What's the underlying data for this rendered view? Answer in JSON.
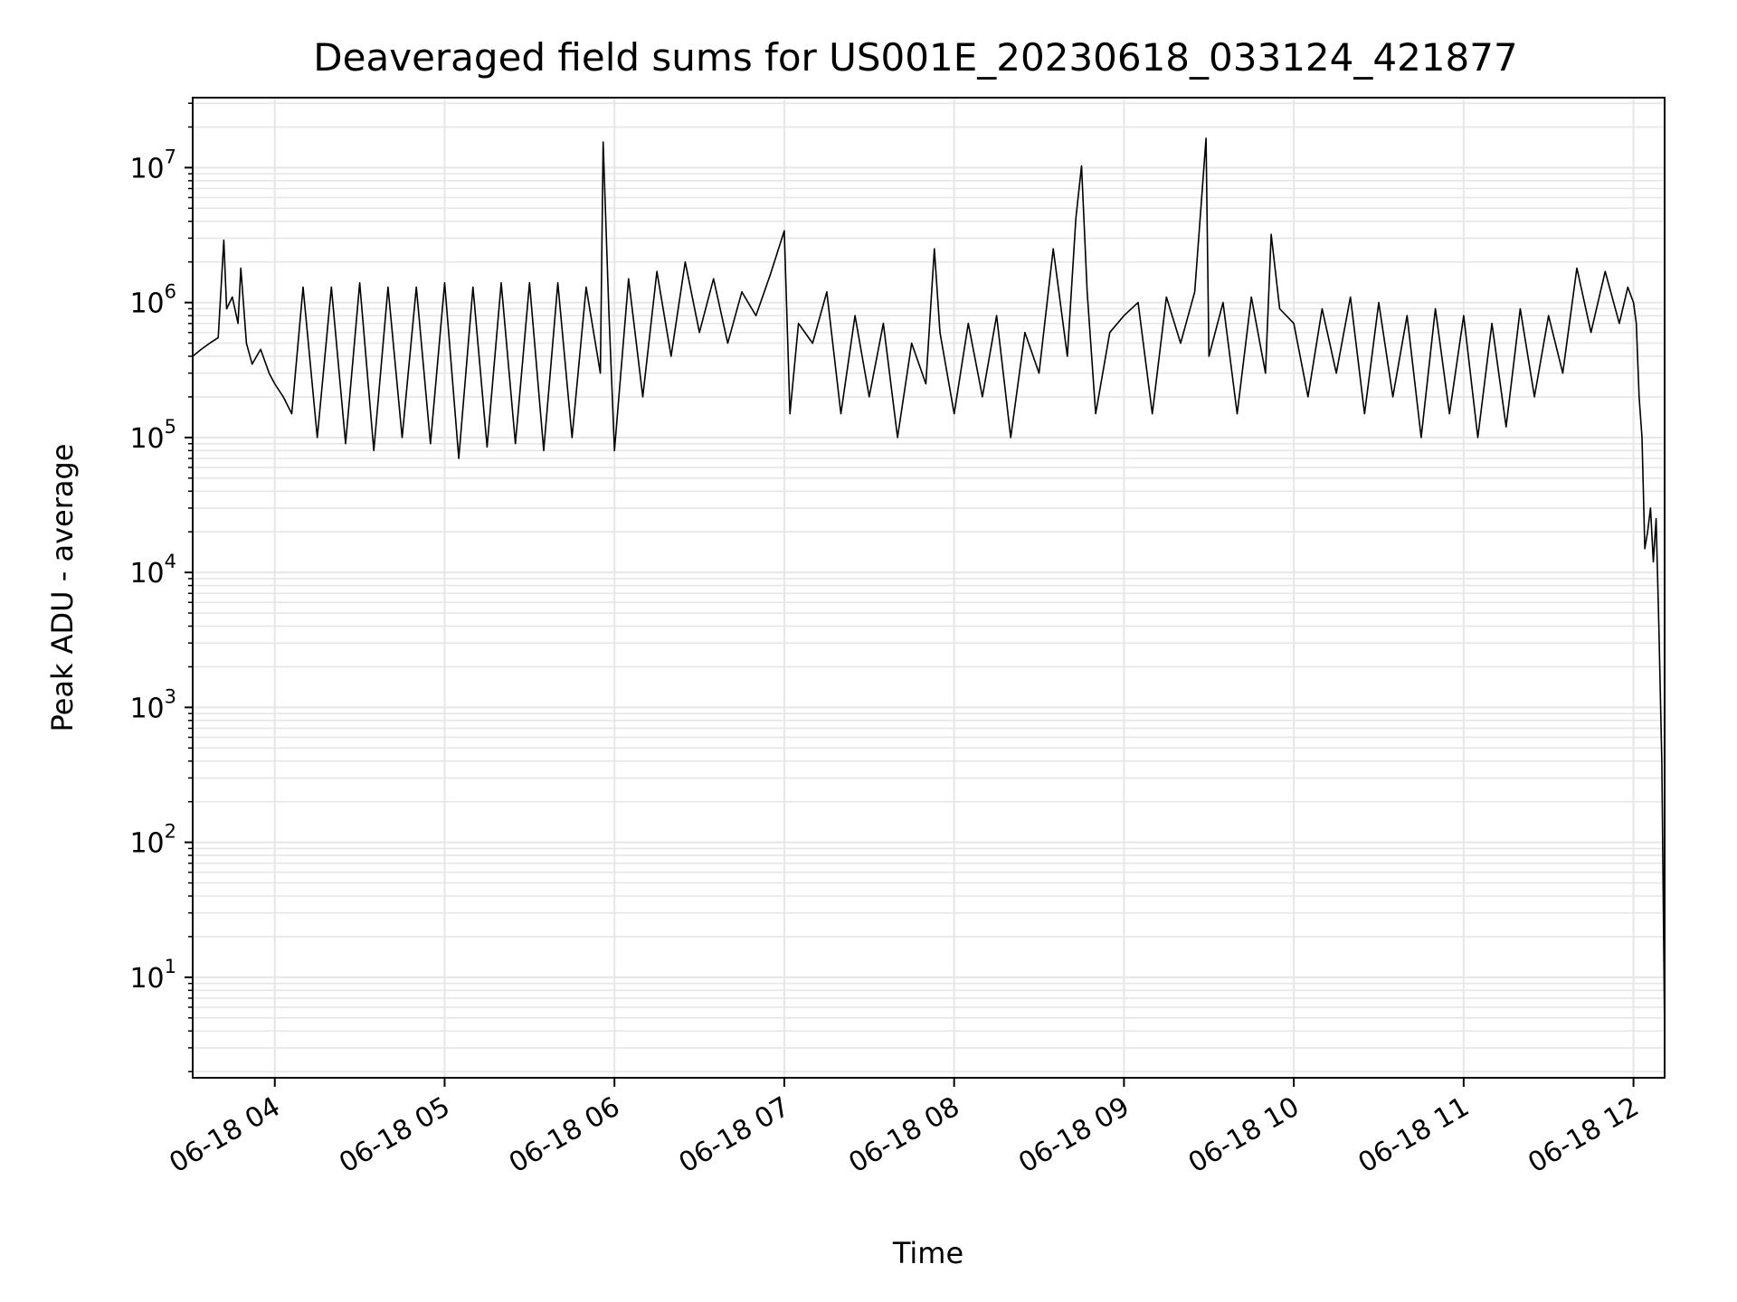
{
  "chart_data": {
    "type": "line",
    "title": "Deaveraged field sums for US001E_20230618_033124_421877",
    "xlabel": "Time",
    "ylabel": "Peak ADU - average",
    "yscale": "log",
    "x_range": [
      "06-18 03:31",
      "06-18 12:11"
    ],
    "y_range": [
      1.8,
      33000000.0
    ],
    "x_ticks": [
      {
        "label": "06-18 04",
        "hour": 4
      },
      {
        "label": "06-18 05",
        "hour": 5
      },
      {
        "label": "06-18 06",
        "hour": 6
      },
      {
        "label": "06-18 07",
        "hour": 7
      },
      {
        "label": "06-18 08",
        "hour": 8
      },
      {
        "label": "06-18 09",
        "hour": 9
      },
      {
        "label": "06-18 10",
        "hour": 10
      },
      {
        "label": "06-18 11",
        "hour": 11
      },
      {
        "label": "06-18 12",
        "hour": 12
      }
    ],
    "y_ticks": [
      {
        "base": "10",
        "exp": "1",
        "value": 10
      },
      {
        "base": "10",
        "exp": "2",
        "value": 100
      },
      {
        "base": "10",
        "exp": "3",
        "value": 1000
      },
      {
        "base": "10",
        "exp": "4",
        "value": 10000
      },
      {
        "base": "10",
        "exp": "5",
        "value": 100000
      },
      {
        "base": "10",
        "exp": "6",
        "value": 1000000
      },
      {
        "base": "10",
        "exp": "7",
        "value": 10000000
      }
    ],
    "grid": true,
    "line_color": "#000000",
    "grid_color": "#e6e6e6",
    "series": [
      {
        "x": [
          "03:31",
          "03:34",
          "03:37",
          "03:40",
          "03:42",
          "03:43",
          "03:45",
          "03:47",
          "03:48",
          "03:50",
          "03:52",
          "03:55",
          "03:58",
          "04:00",
          "04:03",
          "04:06",
          "04:10",
          "04:15",
          "04:20",
          "04:25",
          "04:30",
          "04:35",
          "04:40",
          "04:45",
          "04:50",
          "04:55",
          "05:00",
          "05:05",
          "05:10",
          "05:15",
          "05:20",
          "05:25",
          "05:30",
          "05:35",
          "05:40",
          "05:45",
          "05:50",
          "05:55",
          "05:56",
          "05:58",
          "06:00",
          "06:05",
          "06:10",
          "06:15",
          "06:20",
          "06:25",
          "06:30",
          "06:35",
          "06:40",
          "06:45",
          "06:50",
          "06:55",
          "07:00",
          "07:02",
          "07:05",
          "07:10",
          "07:15",
          "07:20",
          "07:25",
          "07:30",
          "07:35",
          "07:40",
          "07:45",
          "07:50",
          "07:53",
          "07:55",
          "08:00",
          "08:05",
          "08:10",
          "08:15",
          "08:20",
          "08:25",
          "08:30",
          "08:35",
          "08:40",
          "08:43",
          "08:45",
          "08:47",
          "08:50",
          "08:55",
          "09:00",
          "09:05",
          "09:10",
          "09:15",
          "09:20",
          "09:25",
          "09:29",
          "09:30",
          "09:35",
          "09:40",
          "09:45",
          "09:50",
          "09:52",
          "09:55",
          "10:00",
          "10:05",
          "10:10",
          "10:15",
          "10:20",
          "10:25",
          "10:30",
          "10:35",
          "10:40",
          "10:45",
          "10:50",
          "10:55",
          "11:00",
          "11:05",
          "11:10",
          "11:15",
          "11:20",
          "11:25",
          "11:30",
          "11:35",
          "11:40",
          "11:45",
          "11:50",
          "11:55",
          "11:58",
          "12:00",
          "12:01",
          "12:02",
          "12:03",
          "12:04",
          "12:05",
          "12:06",
          "12:07",
          "12:08",
          "12:09",
          "12:10",
          "12:11"
        ],
        "y": [
          400000,
          450000,
          500000,
          550000,
          2900000,
          900000,
          1100000,
          700000,
          1800000,
          500000,
          350000,
          450000,
          300000,
          250000,
          200000,
          150000,
          1300000,
          100000,
          1300000,
          90000,
          1400000,
          80000,
          1300000,
          100000,
          1300000,
          90000,
          1400000,
          70000,
          1300000,
          85000,
          1400000,
          90000,
          1400000,
          80000,
          1400000,
          100000,
          1300000,
          300000,
          15500000,
          900000,
          80000,
          1500000,
          200000,
          1700000,
          400000,
          2000000,
          600000,
          1500000,
          500000,
          1200000,
          800000,
          1600000,
          3400000,
          150000,
          700000,
          500000,
          1200000,
          150000,
          800000,
          200000,
          700000,
          100000,
          500000,
          250000,
          2500000,
          600000,
          150000,
          700000,
          200000,
          800000,
          100000,
          600000,
          300000,
          2500000,
          400000,
          4200000,
          10300000,
          1200000,
          150000,
          600000,
          800000,
          1000000,
          150000,
          1100000,
          500000,
          1200000,
          16500000,
          400000,
          1000000,
          150000,
          1100000,
          300000,
          3200000,
          900000,
          700000,
          200000,
          900000,
          300000,
          1100000,
          150000,
          1000000,
          200000,
          800000,
          100000,
          900000,
          150000,
          800000,
          100000,
          700000,
          120000,
          900000,
          200000,
          800000,
          300000,
          1800000,
          600000,
          1700000,
          700000,
          1300000,
          1000000,
          700000,
          200000,
          100000,
          15000,
          20000,
          30000,
          12000,
          25000,
          3800,
          400,
          3.8
        ]
      }
    ]
  }
}
